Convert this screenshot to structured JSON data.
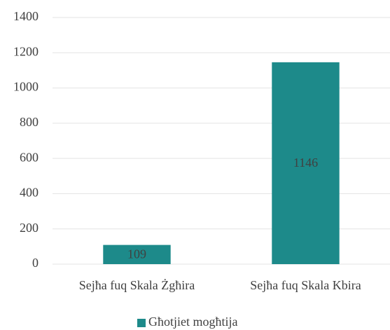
{
  "chart_data": {
    "type": "bar",
    "categories": [
      "Sejħa fuq Skala Żgħira",
      "Sejħa fuq Skala Kbira"
    ],
    "series": [
      {
        "name": "Għotjiet mogħtija",
        "color": "#1d8a8a",
        "values": [
          109,
          1146
        ]
      }
    ],
    "ylim": [
      0,
      1400
    ],
    "yticks": [
      0,
      200,
      400,
      600,
      800,
      1000,
      1200,
      1400
    ],
    "grid": true,
    "legend": "bottom",
    "data_labels": true
  }
}
